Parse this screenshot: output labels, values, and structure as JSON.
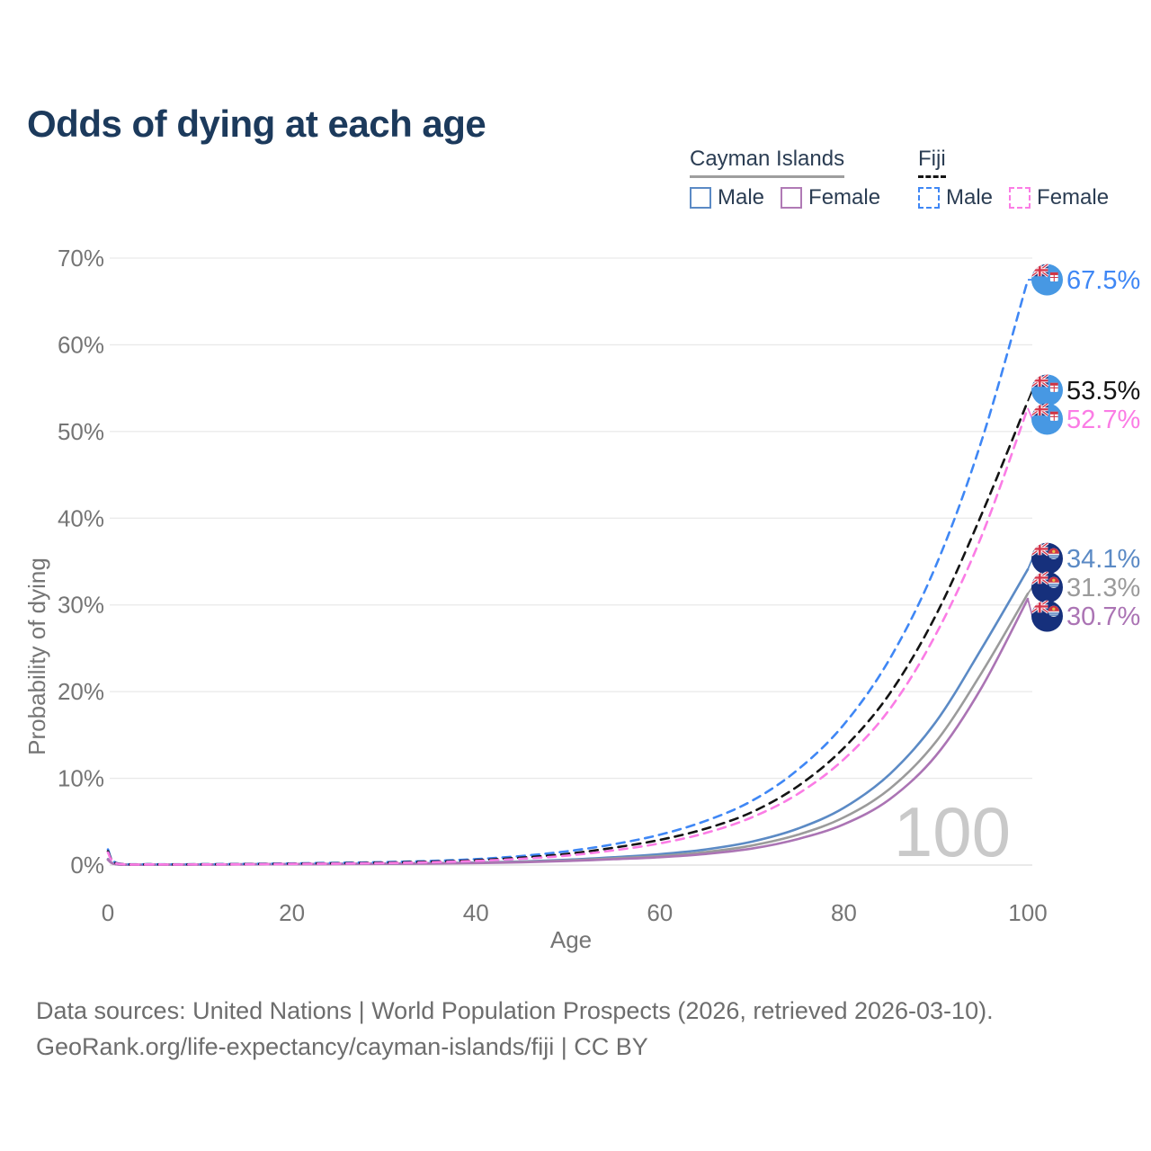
{
  "title": "Odds of dying at each age",
  "legend": {
    "groups": [
      {
        "label": "Cayman Islands",
        "line_style": "solid",
        "underline_color": "#9e9e9e",
        "items": [
          {
            "label": "Male",
            "color": "#5b8ac5"
          },
          {
            "label": "Female",
            "color": "#b07ab5"
          }
        ]
      },
      {
        "label": "Fiji",
        "line_style": "dashed",
        "underline_color": "#141414",
        "items": [
          {
            "label": "Male",
            "color": "#3f87f5"
          },
          {
            "label": "Female",
            "color": "#fb7ce5"
          }
        ]
      }
    ]
  },
  "chart_data": {
    "type": "line",
    "title": "Odds of dying at each age",
    "xlabel": "Age",
    "ylabel": "Probability of dying",
    "xlim": [
      0,
      100
    ],
    "ylim": [
      0,
      70
    ],
    "x_ticks": [
      0,
      20,
      40,
      60,
      80,
      100
    ],
    "y_ticks": [
      "0%",
      "10%",
      "20%",
      "30%",
      "40%",
      "50%",
      "60%",
      "70%"
    ],
    "grid": "horizontal",
    "legend_position": "top-right",
    "watermark": "100",
    "ages": [
      0,
      1,
      5,
      10,
      15,
      20,
      25,
      30,
      35,
      40,
      45,
      50,
      55,
      60,
      65,
      70,
      75,
      80,
      85,
      90,
      95,
      100
    ],
    "series": [
      {
        "name": "Fiji Male",
        "country": "fiji",
        "color": "#3f87f5",
        "dashed": true,
        "end_label": "67.5%",
        "values": [
          1.8,
          0.22,
          0.09,
          0.09,
          0.13,
          0.19,
          0.26,
          0.34,
          0.47,
          0.68,
          1.05,
          1.6,
          2.4,
          3.5,
          5.1,
          7.4,
          11.0,
          16.2,
          23.8,
          34.5,
          49.0,
          67.5
        ]
      },
      {
        "name": "Fiji Both Sexes",
        "country": "fiji",
        "color": "#141414",
        "dashed": true,
        "end_label": "53.5%",
        "values": [
          1.6,
          0.19,
          0.08,
          0.08,
          0.11,
          0.16,
          0.21,
          0.28,
          0.39,
          0.56,
          0.86,
          1.3,
          2.0,
          2.9,
          4.2,
          6.1,
          9.1,
          13.5,
          19.8,
          28.8,
          40.5,
          53.5
        ]
      },
      {
        "name": "Fiji Female",
        "country": "fiji",
        "color": "#fb7ce5",
        "dashed": true,
        "end_label": "52.7%",
        "values": [
          1.45,
          0.17,
          0.07,
          0.07,
          0.09,
          0.13,
          0.17,
          0.23,
          0.32,
          0.48,
          0.73,
          1.1,
          1.7,
          2.5,
          3.7,
          5.5,
          8.2,
          12.2,
          18.0,
          26.6,
          38.0,
          52.7
        ]
      },
      {
        "name": "Cayman Islands Male",
        "country": "cayman",
        "color": "#5b8ac5",
        "dashed": false,
        "end_label": "34.1%",
        "values": [
          0.7,
          0.09,
          0.05,
          0.06,
          0.09,
          0.11,
          0.14,
          0.17,
          0.22,
          0.29,
          0.42,
          0.62,
          0.9,
          1.25,
          1.8,
          2.7,
          4.2,
          6.6,
          10.5,
          16.5,
          25.0,
          34.1
        ]
      },
      {
        "name": "Cayman Islands Both Sexes",
        "country": "cayman",
        "color": "#9b9b9b",
        "dashed": false,
        "end_label": "31.3%",
        "values": [
          0.65,
          0.08,
          0.04,
          0.05,
          0.08,
          0.1,
          0.12,
          0.15,
          0.19,
          0.26,
          0.37,
          0.54,
          0.78,
          1.05,
          1.5,
          2.25,
          3.5,
          5.5,
          8.8,
          14.2,
          22.2,
          31.3
        ]
      },
      {
        "name": "Cayman Islands Female",
        "country": "cayman",
        "color": "#ab74b4",
        "dashed": false,
        "end_label": "30.7%",
        "values": [
          0.6,
          0.07,
          0.04,
          0.05,
          0.07,
          0.09,
          0.11,
          0.13,
          0.17,
          0.23,
          0.32,
          0.47,
          0.67,
          0.9,
          1.28,
          1.9,
          3.0,
          4.7,
          7.6,
          12.6,
          20.5,
          30.7
        ]
      }
    ]
  },
  "footer": {
    "line1": "Data sources: United Nations | World Population Prospects (2026, retrieved 2026-03-10).",
    "line2": "GeoRank.org/life-expectancy/cayman-islands/fiji | CC BY"
  }
}
